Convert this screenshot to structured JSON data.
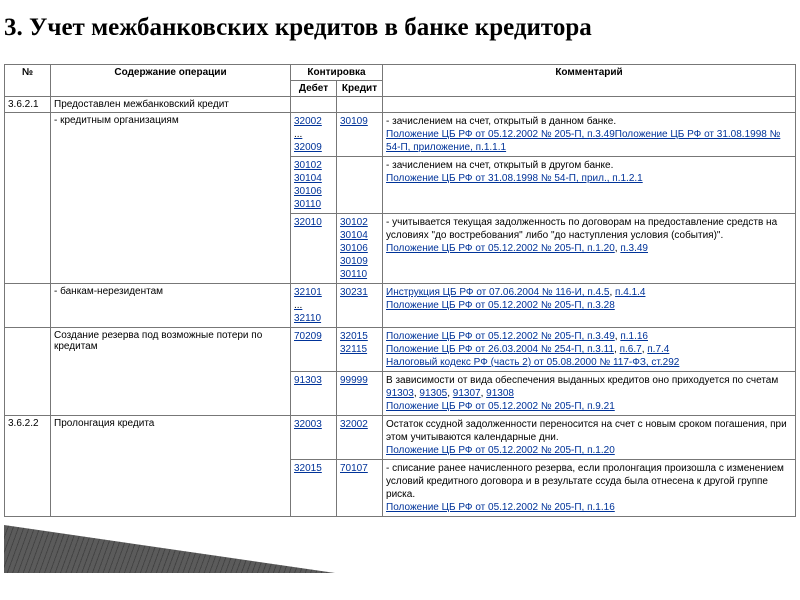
{
  "title": "3. Учет межбанковских кредитов в банке кредитора",
  "colors": {
    "text": "#000000",
    "link": "#003399",
    "border": "#777777",
    "background": "#ffffff",
    "decor_triangle": "#5b5b5b"
  },
  "typography": {
    "title_font": "Times New Roman",
    "title_size_pt": 19,
    "title_weight": "bold",
    "table_font": "Arial",
    "table_size_pt": 7.5
  },
  "headers": {
    "num": "№",
    "op": "Содержание операции",
    "kont": "Контировка",
    "deb": "Дебет",
    "cred": "Кредит",
    "com": "Комментарий"
  },
  "rows": [
    {
      "num": "3.6.2.1",
      "op": "Предоставлен межбанковский кредит",
      "debit": [],
      "credit": [],
      "comment_plain": "",
      "comment_links": []
    },
    {
      "num": "",
      "op": "- кредитным организациям",
      "op_pad": true,
      "debit": [
        "32002",
        "…",
        "32009"
      ],
      "credit": [
        "30109"
      ],
      "comment_plain": "- зачислением на счет, открытый в данном банке.",
      "comment_links": [
        {
          "t": "Положение ЦБ РФ от 05.12.2002 № 205-П, п.3.49"
        },
        {
          "t": "Положение ЦБ РФ от 31.08.1998 № 54-П, приложение, п.1.1.1"
        }
      ]
    },
    {
      "num": "",
      "op": "",
      "debit": [
        "30102",
        "30104",
        "30106",
        "30110"
      ],
      "credit": [],
      "comment_plain": "- зачислением на счет, открытый в другом банке.",
      "comment_links": [
        {
          "t": "Положение ЦБ РФ от 31.08.1998 № 54-П, прил., п.1.2.1"
        }
      ]
    },
    {
      "num": "",
      "op": "",
      "debit": [
        "32010"
      ],
      "credit": [
        "30102",
        "30104",
        "30106",
        "30109",
        "30110"
      ],
      "comment_plain": "- учитывается текущая задолженность по договорам на предоставление средств на условиях \"до востребования\" либо \"до наступления условия (события)\".",
      "comment_links": [
        {
          "t": "Положение ЦБ РФ от 05.12.2002 № 205-П, п.1.20"
        },
        {
          "sep": ", "
        },
        {
          "t": "п.3.49"
        }
      ]
    },
    {
      "num": "",
      "op": "- банкам-нерезидентам",
      "op_pad": true,
      "debit": [
        "32101",
        "…",
        "32110"
      ],
      "credit": [
        "30231"
      ],
      "comment_plain": "",
      "comment_links": [
        {
          "t": "Инструкция ЦБ РФ от 07.06.2004 № 116-И, п.4.5"
        },
        {
          "sep": ", "
        },
        {
          "t": "п.4.1.4"
        },
        {
          "br": true
        },
        {
          "t": "Положение ЦБ РФ от 05.12.2002 № 205-П, п.3.28"
        }
      ]
    },
    {
      "num": "",
      "op": "Создание резерва под возможные потери по кредитам",
      "op_pad": true,
      "debit": [
        "70209"
      ],
      "credit": [
        "32015",
        "32115"
      ],
      "comment_plain": "",
      "comment_links": [
        {
          "t": "Положение ЦБ РФ от 05.12.2002 № 205-П, п.3.49"
        },
        {
          "sep": ", "
        },
        {
          "t": "п.1.16"
        },
        {
          "br": true
        },
        {
          "t": "Положение ЦБ РФ от 26.03.2004 № 254-П, п.3.11"
        },
        {
          "sep": ", "
        },
        {
          "t": "п.6.7"
        },
        {
          "sep": ", "
        },
        {
          "t": "п.7.4"
        },
        {
          "br": true
        },
        {
          "t": "Налоговый кодекс РФ (часть 2) от 05.08.2000 № 117-ФЗ, ст.292"
        }
      ]
    },
    {
      "num": "",
      "op": "",
      "debit": [
        "91303"
      ],
      "credit": [
        "99999"
      ],
      "comment_plain": "В зависимости от вида обеспечения выданных кредитов оно приходуется по счетам ",
      "comment_links": [
        {
          "t": "91303"
        },
        {
          "sep": ", "
        },
        {
          "t": "91305"
        },
        {
          "sep": ", "
        },
        {
          "t": "91307"
        },
        {
          "sep": ", "
        },
        {
          "t": "91308"
        },
        {
          "br": true
        },
        {
          "t": "Положение ЦБ РФ от 05.12.2002 № 205-П, п.9.21"
        }
      ]
    },
    {
      "num": "3.6.2.2",
      "op": "Пролонгация кредита",
      "debit": [
        "32003"
      ],
      "credit": [
        "32002"
      ],
      "comment_plain": "Остаток ссудной задолженности переносится на счет с новым сроком погашения, при этом учитываются календарные дни.",
      "comment_links": [
        {
          "t": "Положение ЦБ РФ от 05.12.2002 № 205-П, п.1.20"
        }
      ]
    },
    {
      "num": "",
      "op": "",
      "debit": [
        "32015"
      ],
      "credit": [
        "70107"
      ],
      "comment_plain": "- списание ранее начисленного резерва, если пролонгация произошла с изменением условий кредитного договора и в результате ссуда была отнесена к другой группе риска.",
      "comment_links": [
        {
          "t": "Положение ЦБ РФ от 05.12.2002 № 205-П, п.1.16"
        }
      ]
    }
  ]
}
